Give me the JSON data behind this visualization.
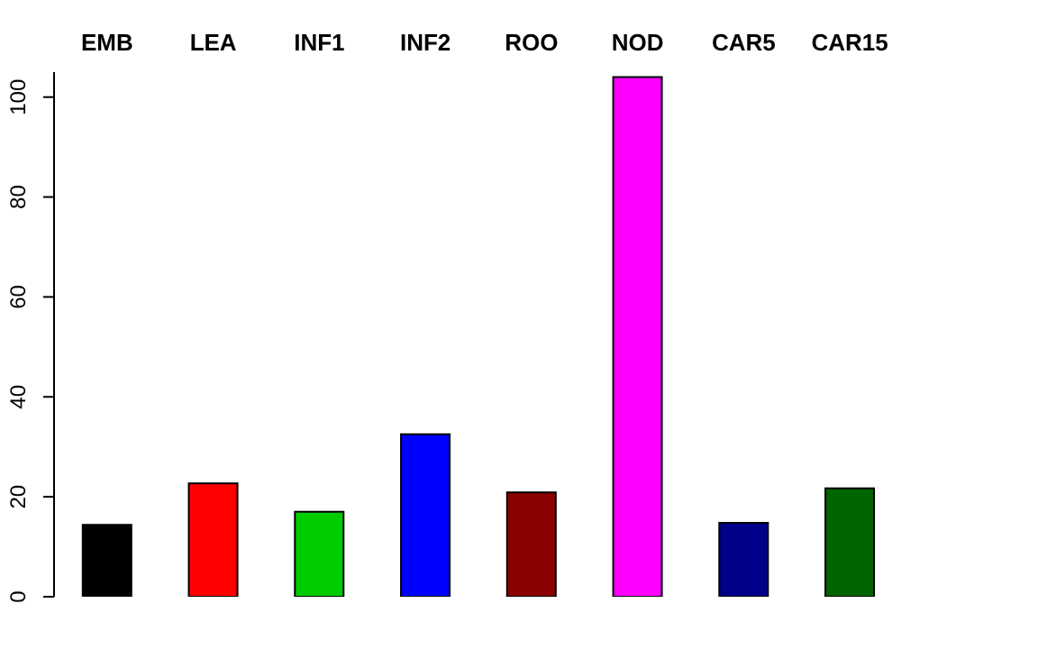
{
  "chart_data": {
    "type": "bar",
    "categories": [
      "EMB",
      "LEA",
      "INF1",
      "INF2",
      "ROO",
      "NOD",
      "CAR5",
      "CAR15"
    ],
    "values": [
      14.4,
      22.7,
      17,
      32.5,
      20.9,
      104,
      14.8,
      21.7
    ],
    "colors": [
      "#000000",
      "#ff0000",
      "#00cd00",
      "#0000ff",
      "#8b0000",
      "#ff00ff",
      "#00008b",
      "#006400"
    ],
    "ylim": [
      0,
      105
    ],
    "yticks": [
      0,
      20,
      40,
      60,
      80,
      100
    ],
    "grid": false
  }
}
